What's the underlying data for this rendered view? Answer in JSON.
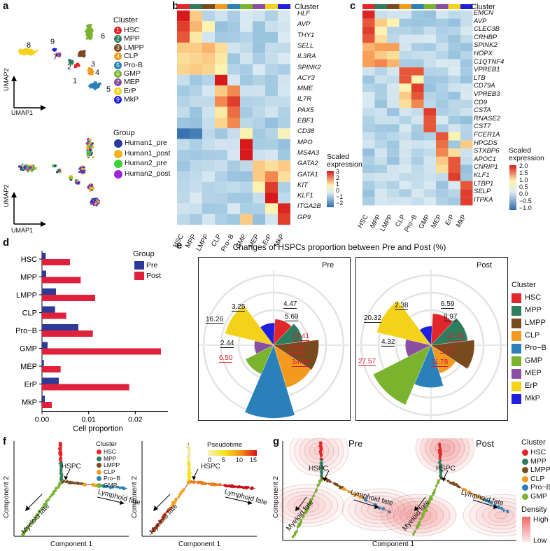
{
  "panels": {
    "a": "a",
    "b": "b",
    "c": "c",
    "d": "d",
    "e": "e",
    "f": "f",
    "g": "g"
  },
  "colors": {
    "HSC": "#e2272b",
    "MPP": "#2e7d5e",
    "LMPP": "#7a4a1f",
    "CLP": "#f39a1e",
    "ProB": "#2a80b9",
    "GMP": "#7ab32e",
    "MEP": "#8a4fa0",
    "ErP": "#f4d21a",
    "MkP": "#1f1fdc",
    "Human1_pre": "#2a3aa0",
    "Human1_post": "#f2b21b",
    "Human2_pre": "#3cd13a",
    "Human2_post": "#a024d9",
    "pre_bar": "#2e3a96",
    "post_bar": "#e0213b"
  },
  "panel_a": {
    "umap1": "UMAP1",
    "umap2": "UMAP2",
    "cluster_title": "Cluster",
    "clusters": [
      {
        "num": "1",
        "name": "HSC"
      },
      {
        "num": "2",
        "name": "MPP"
      },
      {
        "num": "3",
        "name": "LMPP"
      },
      {
        "num": "4",
        "name": "CLP"
      },
      {
        "num": "5",
        "name": "Pro-B"
      },
      {
        "num": "6",
        "name": "GMP"
      },
      {
        "num": "7",
        "name": "MEP"
      },
      {
        "num": "8",
        "name": "ErP"
      },
      {
        "num": "9",
        "name": "MkP"
      }
    ],
    "group_title": "Group",
    "groups": [
      "Human1_pre",
      "Human1_post",
      "Human2_pre",
      "Human2_post"
    ],
    "map_labels": [
      "8",
      "9",
      "7",
      "2",
      "1",
      "3",
      "6",
      "4",
      "5"
    ]
  },
  "panel_b": {
    "cluster_label": "Cluster",
    "genes": [
      "HLF",
      "AVP",
      "THY1",
      "SELL",
      "IL3RA",
      "SPINK2",
      "ACY3",
      "MME",
      "IL7R",
      "PAX5",
      "EBF1",
      "CD38",
      "MPO",
      "MS4A3",
      "GATA2",
      "GATA1",
      "KIT",
      "KLF1",
      "ITGA2B",
      "GP9"
    ],
    "columns": [
      "HSC",
      "MPP",
      "LMPP",
      "CLP",
      "Pro−B",
      "GMP",
      "MEP",
      "ErP",
      "MkP"
    ],
    "scale_title_1": "Scaled",
    "scale_title_2": "expression",
    "scale_ticks": [
      "3",
      "2",
      "1",
      "0",
      "−1",
      "−2"
    ]
  },
  "panel_c": {
    "cluster_label": "Cluster",
    "genes": [
      "EMCN",
      "AVP",
      "CLEC3B",
      "CRHBP",
      "SPINK2",
      "HOPX",
      "C1QTNF4",
      "VPREB1",
      "LTB",
      "CD79A",
      "VPREB3",
      "CD9",
      "CSTA",
      "RNASE2",
      "CST7",
      "FCER1A",
      "HPGDS",
      "STXBP6",
      "APOC1",
      "CNRIP1",
      "KLF1",
      "LTBP1",
      "SELP",
      "ITPKA"
    ],
    "columns": [
      "HSC",
      "MPP",
      "LMPP",
      "CLP",
      "Pro−B",
      "GMP",
      "MEP",
      "ErP",
      "MkP"
    ],
    "scale_title_1": "Scaled",
    "scale_title_2": "expression",
    "scale_ticks": [
      "2.0",
      "1.5",
      "1.0",
      "0.5",
      "0.0",
      "−0.5",
      "−1.0"
    ]
  },
  "chart_data": [
    {
      "type": "bar",
      "title": "",
      "xlabel": "Cell proportion",
      "ylabel": "",
      "orientation": "horizontal",
      "categories": [
        "HSC",
        "MPP",
        "LMPP",
        "CLP",
        "Pro−B",
        "GMP",
        "MEP",
        "ErP",
        "MkP"
      ],
      "series": [
        {
          "name": "Pre",
          "values": [
            0.0008,
            0.0009,
            0.003,
            0.0028,
            0.0078,
            0.0012,
            0.0004,
            0.0036,
            0.0006
          ]
        },
        {
          "name": "Post",
          "values": [
            0.006,
            0.0083,
            0.0114,
            0.0052,
            0.0109,
            0.0255,
            0.004,
            0.0187,
            0.0021
          ]
        }
      ],
      "xlim": [
        0,
        0.027
      ],
      "xticks": [
        "0.00",
        "0.01",
        "0.02"
      ],
      "legend_title": "Group"
    },
    {
      "type": "pie",
      "title": "Changes of HSPCs proportion between Pre and Post (%)",
      "subplots": [
        {
          "name": "Pre",
          "categories": [
            "HSC",
            "MPP",
            "LMPP",
            "CLP",
            "Pro−B",
            "GMP",
            "MEP",
            "ErP",
            "MkP"
          ],
          "values": [
            4.47,
            5.69,
            13.41,
            13.01,
            34.96,
            6.5,
            2.44,
            16.26,
            3.25
          ],
          "labels": [
            "4.47",
            "5.69",
            "13.41",
            "13.01",
            "34.96",
            "6.50",
            "2.44",
            "16.26",
            "3.25"
          ]
        },
        {
          "name": "Post",
          "categories": [
            "HSC",
            "MPP",
            "LMPP",
            "CLP",
            "Pro−B",
            "GMP",
            "MEP",
            "ErP",
            "MkP"
          ],
          "values": [
            6.59,
            8.97,
            12.32,
            5.73,
            11.78,
            27.57,
            4.32,
            20.32,
            2.38
          ],
          "labels": [
            "6.59",
            "8.97",
            "12.32",
            "5.73",
            "11.78",
            "27.57",
            "4.32",
            "20.32",
            "2.38"
          ]
        }
      ],
      "legend_title": "Cluster"
    }
  ],
  "panel_f": {
    "xlabel": "Component 1",
    "ylabel": "Component 2",
    "hspc": "HSPC",
    "myeloid": "Myeloid fate",
    "lymphoid": "Lymphoid fate",
    "cluster_title": "Cluster",
    "clusters": [
      "HSC",
      "MPP",
      "LMPP",
      "CLP",
      "Pro−B",
      "GMP"
    ],
    "pseudotime_title": "Pseudotime",
    "pseudotime_ticks": [
      "0",
      "5",
      "10",
      "15"
    ]
  },
  "panel_g": {
    "pre": "Pre",
    "post": "Post",
    "xlabel": "Component 1",
    "ylabel": "Component 2",
    "hspc": "HSPC",
    "myeloid": "Myeloid fate",
    "lymphoid": "Lymphoid fate",
    "cluster_title": "Cluster",
    "clusters": [
      "HSC",
      "MPP",
      "LMPP",
      "CLP",
      "Pro−B",
      "GMP"
    ],
    "density_title": "Density",
    "density_high": "High",
    "density_low": "Low"
  }
}
